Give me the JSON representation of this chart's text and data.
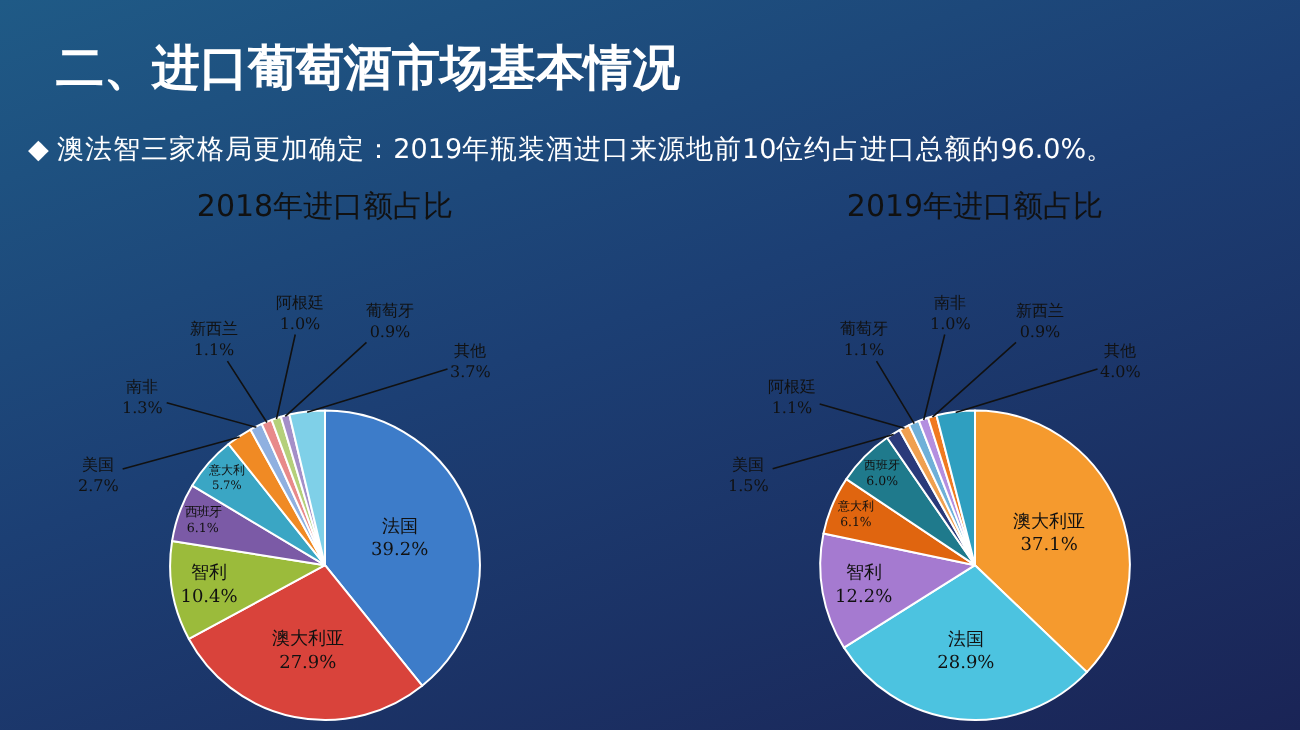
{
  "chart_data": [
    {
      "type": "pie",
      "title": "2018年进口额占比",
      "annotations": [
        "二、进口葡萄酒市场基本情况",
        "◆ 澳法智三家格局更加确定：2019年瓶装酒进口来源地前10位约占进口总额的96.0%。"
      ],
      "categories": [
        "法国",
        "澳大利亚",
        "智利",
        "西班牙",
        "意大利",
        "美国",
        "南非",
        "新西兰",
        "阿根廷",
        "葡萄牙",
        "其他"
      ],
      "values": [
        39.2,
        27.9,
        10.4,
        6.1,
        5.7,
        2.7,
        1.3,
        1.1,
        1.0,
        0.9,
        3.7
      ],
      "value_labels": [
        "39.2%",
        "27.9%",
        "10.4%",
        "6.1%",
        "5.7%",
        "2.7%",
        "1.3%",
        "1.1%",
        "1.0%",
        "0.9%",
        "3.7%"
      ],
      "colors": [
        "#3d7cc9",
        "#d9433b",
        "#9bbb3b",
        "#7b5aa6",
        "#3aa6c4",
        "#f08a24",
        "#8fb0e0",
        "#e88a8a",
        "#b5d07a",
        "#a48fc8",
        "#7fd0e8"
      ]
    },
    {
      "type": "pie",
      "title": "2019年进口额占比",
      "categories": [
        "澳大利亚",
        "法国",
        "智利",
        "意大利",
        "西班牙",
        "美国",
        "阿根廷",
        "葡萄牙",
        "南非",
        "新西兰",
        "其他"
      ],
      "values": [
        37.1,
        28.9,
        12.2,
        6.1,
        6.0,
        1.5,
        1.1,
        1.1,
        1.0,
        0.9,
        4.0
      ],
      "value_labels": [
        "37.1%",
        "28.9%",
        "12.2%",
        "6.1%",
        "6.0%",
        "1.5%",
        "1.1%",
        "1.1%",
        "1.0%",
        "0.9%",
        "4.0%"
      ],
      "colors": [
        "#f59a2e",
        "#4cc3e0",
        "#a57ad0",
        "#e0650f",
        "#1f7a8c",
        "#2a3a7a",
        "#f0a050",
        "#6fb0d8",
        "#b48fe0",
        "#f07a20",
        "#2f9fc0"
      ]
    }
  ]
}
